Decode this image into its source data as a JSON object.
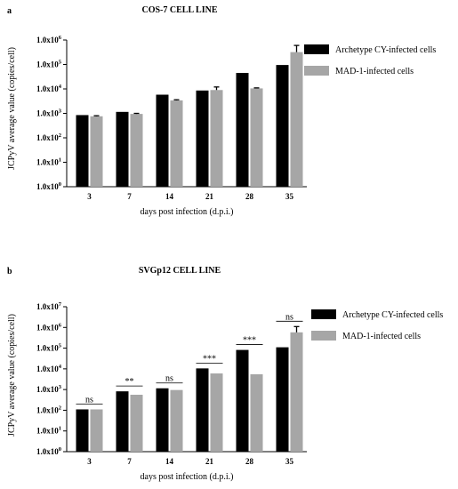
{
  "chart_data": [
    {
      "type": "bar",
      "panel": "a",
      "title": "COS-7 CELL LINE",
      "xlabel": "days post infection (d.p.i.)",
      "ylabel": "JCPyV average value (copies/cell)",
      "scale": "log",
      "ylim": [
        1,
        1000000
      ],
      "yticks": [
        {
          "base": "1.0x10",
          "exp": "0"
        },
        {
          "base": "1.0x10",
          "exp": "1"
        },
        {
          "base": "1.0x10",
          "exp": "2"
        },
        {
          "base": "1.0x10",
          "exp": "3"
        },
        {
          "base": "1.0x10",
          "exp": "4"
        },
        {
          "base": "1.0x10",
          "exp": "5"
        },
        {
          "base": "1.0x10",
          "exp": "6"
        }
      ],
      "categories": [
        "3",
        "7",
        "14",
        "21",
        "28",
        "35"
      ],
      "series": [
        {
          "name": "Archetype CY-infected cells",
          "color": "#000000",
          "values": [
            850,
            1150,
            5800,
            8600,
            45000,
            95000
          ],
          "errors": [
            null,
            null,
            null,
            null,
            null,
            null
          ]
        },
        {
          "name": "MAD-1-infected cells",
          "color": "#a6a6a6",
          "values": [
            760,
            950,
            3400,
            9000,
            10500,
            320000
          ],
          "errors": [
            800,
            1000,
            3600,
            12000,
            11000,
            600000
          ]
        }
      ],
      "significance": [],
      "legend": "right"
    },
    {
      "type": "bar",
      "panel": "b",
      "title": "SVGp12 CELL LINE",
      "xlabel": "days post infection (d.p.i.)",
      "ylabel": "JCPyV average value (copies/cell)",
      "scale": "log",
      "ylim": [
        1,
        10000000
      ],
      "yticks": [
        {
          "base": "1.0x10",
          "exp": "0"
        },
        {
          "base": "1.0x10",
          "exp": "1"
        },
        {
          "base": "1.0x10",
          "exp": "2"
        },
        {
          "base": "1.0x10",
          "exp": "3"
        },
        {
          "base": "1.0x10",
          "exp": "4"
        },
        {
          "base": "1.0x10",
          "exp": "5"
        },
        {
          "base": "1.0x10",
          "exp": "6"
        },
        {
          "base": "1.0x10",
          "exp": "7"
        }
      ],
      "categories": [
        "3",
        "7",
        "14",
        "21",
        "28",
        "35"
      ],
      "series": [
        {
          "name": "Archetype CY-infected cells",
          "color": "#000000",
          "values": [
            110,
            820,
            1150,
            10500,
            82000,
            110000
          ],
          "errors": [
            null,
            null,
            null,
            null,
            null,
            null
          ]
        },
        {
          "name": "MAD-1-infected cells",
          "color": "#a6a6a6",
          "values": [
            110,
            560,
            950,
            6000,
            5500,
            580000
          ],
          "errors": [
            null,
            null,
            null,
            null,
            null,
            1100000
          ]
        }
      ],
      "significance": [
        "ns",
        "**",
        "ns",
        "***",
        "***",
        "ns"
      ],
      "legend": "right"
    }
  ]
}
